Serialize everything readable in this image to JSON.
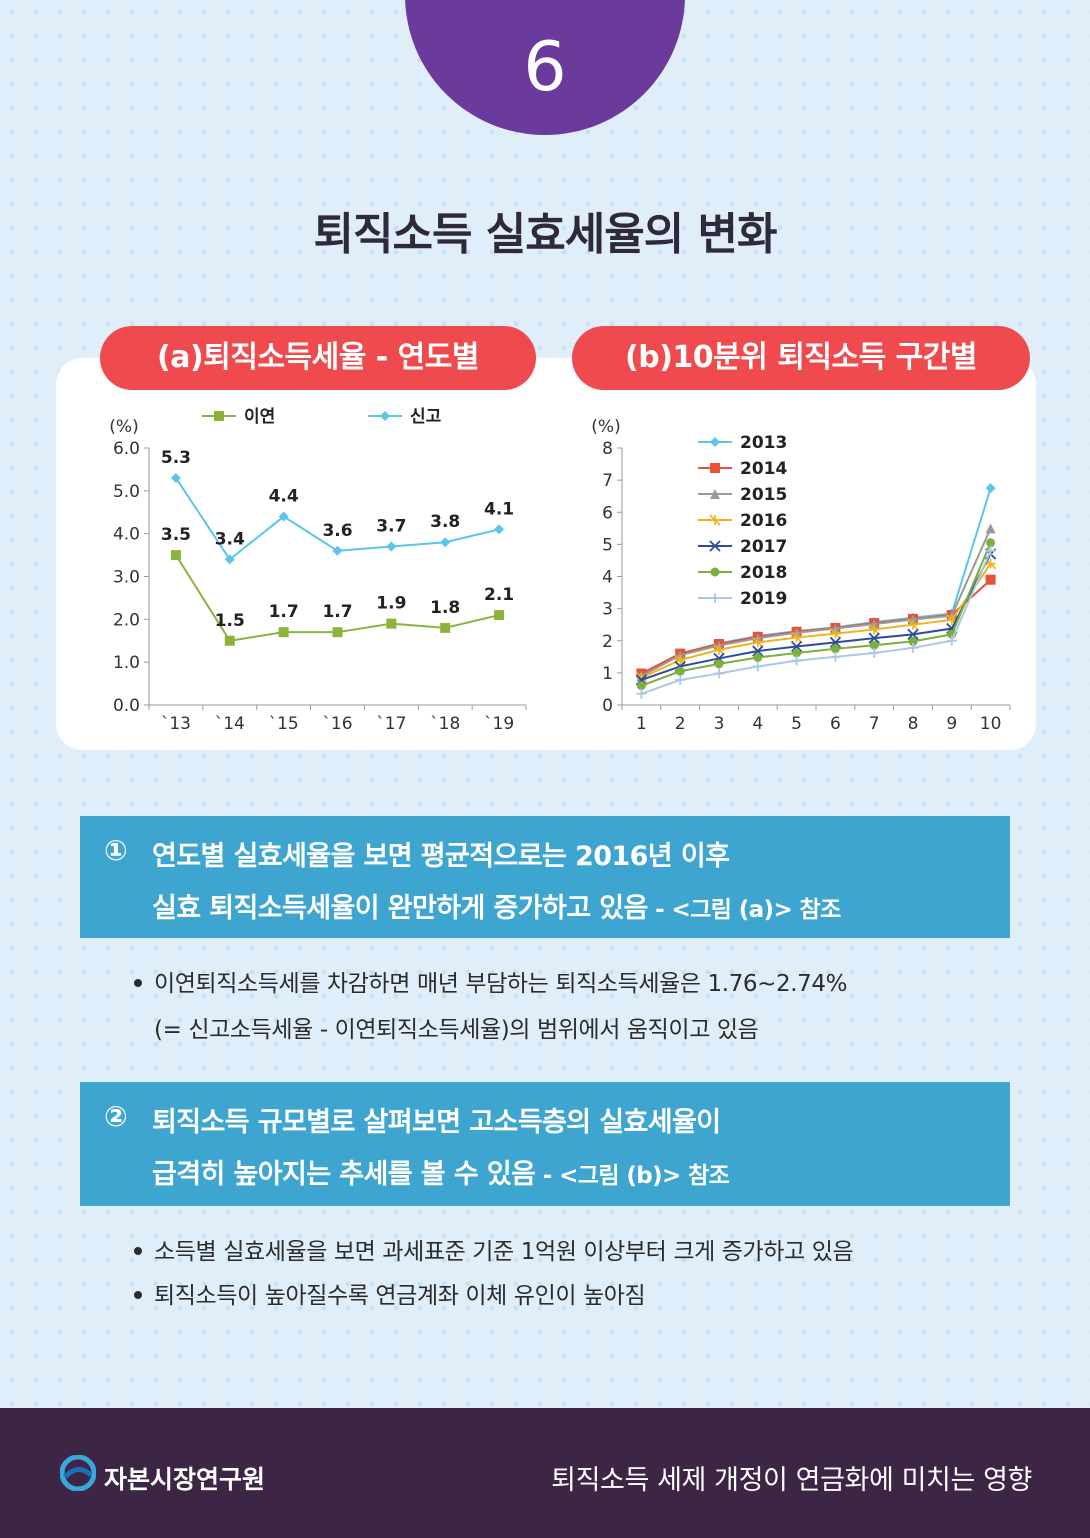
{
  "page_number": "6",
  "title": "퇴직소득 실효세율의 변화",
  "chart_data": [
    {
      "type": "line",
      "title": "(a)퇴직소득세율 - 연도별",
      "unit": "(%)",
      "categories": [
        "`13",
        "`14",
        "`15",
        "`16",
        "`17",
        "`18",
        "`19"
      ],
      "y_ticks": [
        "0.0",
        "1.0",
        "2.0",
        "3.0",
        "4.0",
        "5.0",
        "6.0"
      ],
      "ylim": [
        0,
        6
      ],
      "legend_position": "top",
      "series": [
        {
          "name": "이연",
          "color": "#8cb43c",
          "marker": "square",
          "values": [
            3.5,
            1.5,
            1.7,
            1.7,
            1.9,
            1.8,
            2.1
          ]
        },
        {
          "name": "신고",
          "color": "#5bc6ea",
          "marker": "diamond",
          "values": [
            5.3,
            3.4,
            4.4,
            3.6,
            3.7,
            3.8,
            4.1
          ]
        }
      ]
    },
    {
      "type": "line",
      "title": "(b)10분위 퇴직소득 구간별",
      "unit": "(%)",
      "categories": [
        "1",
        "2",
        "3",
        "4",
        "5",
        "6",
        "7",
        "8",
        "9",
        "10"
      ],
      "y_ticks": [
        "0",
        "1",
        "2",
        "3",
        "4",
        "5",
        "6",
        "7",
        "8"
      ],
      "ylim": [
        0,
        8
      ],
      "legend_position": "top-left",
      "series": [
        {
          "name": "2013",
          "color": "#5bc6ea",
          "marker": "diamond",
          "values": [
            0.95,
            1.6,
            1.92,
            2.15,
            2.3,
            2.42,
            2.58,
            2.72,
            2.85,
            6.75
          ]
        },
        {
          "name": "2014",
          "color": "#e8513a",
          "marker": "square",
          "values": [
            0.98,
            1.6,
            1.9,
            2.12,
            2.28,
            2.4,
            2.55,
            2.68,
            2.8,
            3.9
          ]
        },
        {
          "name": "2015",
          "color": "#9a9a9a",
          "marker": "triangle",
          "values": [
            0.9,
            1.55,
            1.85,
            2.08,
            2.25,
            2.38,
            2.52,
            2.66,
            2.78,
            5.5
          ]
        },
        {
          "name": "2016",
          "color": "#f2b21c",
          "marker": "cross",
          "values": [
            0.85,
            1.4,
            1.72,
            1.95,
            2.1,
            2.22,
            2.35,
            2.5,
            2.65,
            4.4
          ]
        },
        {
          "name": "2017",
          "color": "#2e4a9c",
          "marker": "x",
          "values": [
            0.78,
            1.2,
            1.45,
            1.68,
            1.82,
            1.95,
            2.08,
            2.2,
            2.38,
            4.7
          ]
        },
        {
          "name": "2018",
          "color": "#7ab03c",
          "marker": "circle",
          "values": [
            0.6,
            1.05,
            1.28,
            1.48,
            1.62,
            1.75,
            1.86,
            1.98,
            2.2,
            5.05
          ]
        },
        {
          "name": "2019",
          "color": "#a9c8e6",
          "marker": "plus",
          "values": [
            0.35,
            0.78,
            0.98,
            1.2,
            1.38,
            1.5,
            1.62,
            1.78,
            2.0,
            4.8
          ]
        }
      ]
    }
  ],
  "section1": {
    "marker": "①",
    "line1": "연도별 실효세율을 보면 평균적으로는 2016년 이후",
    "line2": "실효 퇴직소득세율이 완만하게 증가하고 있음",
    "ref": " - <그림 (a)> 참조",
    "bullets": [
      "이연퇴직소득세를 차감하면 매년 부담하는 퇴직소득세율은 1.76~2.74%",
      "(= 신고소득세율 - 이연퇴직소득세율)의 범위에서 움직이고 있음"
    ]
  },
  "section2": {
    "marker": "②",
    "line1": "퇴직소득 규모별로 살펴보면 고소득층의 실효세율이",
    "line2": "급격히 높아지는 추세를 볼 수 있음",
    "ref": " - <그림 (b)> 참조",
    "bullets": [
      "소득별 실효세율을 보면 과세표준 기준 1억원 이상부터 크게 증가하고 있음",
      "퇴직소득이 높아질수록 연금계좌 이체 유인이 높아짐"
    ]
  },
  "footer": {
    "org": "자본시장연구원",
    "doc_title": "퇴직소득 세제 개정이 연금화에 미치는 영향"
  }
}
